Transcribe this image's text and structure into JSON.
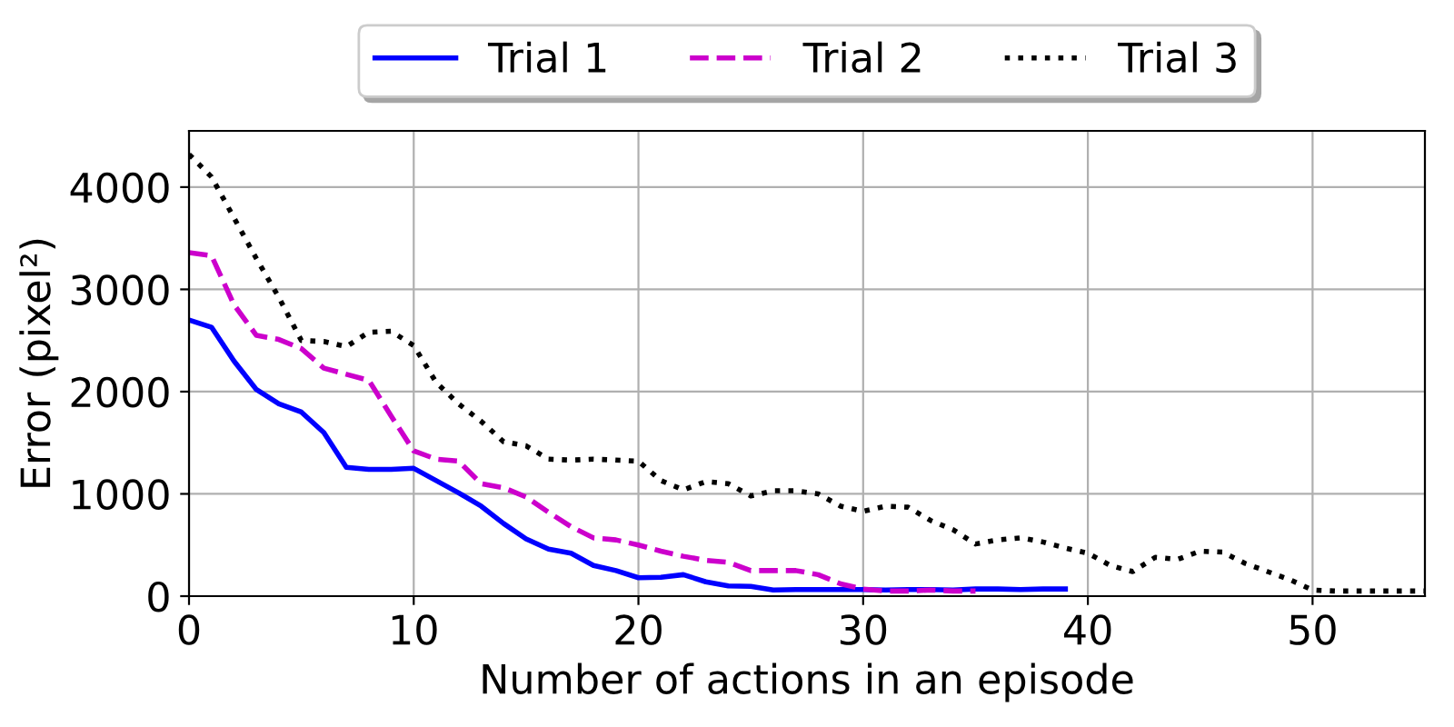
{
  "chart_data": {
    "type": "line",
    "xlabel": "Number of actions in an episode",
    "ylabel": "Error (pixel²)",
    "xlim": [
      0,
      55
    ],
    "ylim": [
      0,
      4550
    ],
    "xticks": [
      0,
      10,
      20,
      30,
      40,
      50
    ],
    "yticks": [
      0,
      1000,
      2000,
      3000,
      4000
    ],
    "grid": true,
    "legend": "top",
    "marker": "none",
    "series": [
      {
        "name": "Trial 1",
        "color": "#0000ff",
        "line_style": "solid",
        "x": [
          0,
          1,
          2,
          3,
          4,
          5,
          6,
          7,
          8,
          9,
          10,
          11,
          12,
          13,
          14,
          15,
          16,
          17,
          18,
          19,
          20,
          21,
          22,
          23,
          24,
          25,
          26,
          27,
          28,
          29,
          30,
          31,
          32,
          33,
          34,
          35,
          36,
          37,
          38,
          39
        ],
        "values": [
          2700,
          2630,
          2300,
          2020,
          1880,
          1800,
          1600,
          1260,
          1240,
          1240,
          1250,
          1130,
          1010,
          880,
          710,
          560,
          460,
          420,
          300,
          250,
          180,
          185,
          210,
          140,
          100,
          95,
          60,
          65,
          65,
          65,
          65,
          60,
          65,
          65,
          60,
          70,
          70,
          65,
          70,
          70
        ]
      },
      {
        "name": "Trial 2",
        "color": "#cc00cc",
        "line_style": "dashed",
        "x": [
          0,
          1,
          2,
          3,
          4,
          5,
          6,
          7,
          8,
          9,
          10,
          11,
          12,
          13,
          14,
          15,
          16,
          17,
          18,
          19,
          20,
          21,
          22,
          23,
          24,
          25,
          26,
          27,
          28,
          29,
          30,
          31,
          32,
          33,
          34,
          35
        ],
        "values": [
          3360,
          3330,
          2850,
          2550,
          2510,
          2420,
          2230,
          2170,
          2110,
          1760,
          1420,
          1340,
          1320,
          1100,
          1060,
          970,
          820,
          680,
          570,
          550,
          500,
          440,
          390,
          350,
          330,
          250,
          250,
          250,
          210,
          120,
          70,
          50,
          50,
          60,
          50,
          50
        ]
      },
      {
        "name": "Trial 3",
        "color": "#000000",
        "line_style": "dotted",
        "x": [
          0,
          1,
          2,
          3,
          4,
          5,
          6,
          7,
          8,
          9,
          10,
          11,
          12,
          13,
          14,
          15,
          16,
          17,
          18,
          19,
          20,
          21,
          22,
          23,
          24,
          25,
          26,
          27,
          28,
          29,
          30,
          31,
          32,
          33,
          34,
          35,
          36,
          37,
          38,
          39,
          40,
          41,
          42,
          43,
          44,
          45,
          46,
          47,
          48,
          49,
          50,
          51,
          52,
          53,
          54,
          55
        ],
        "values": [
          4320,
          4100,
          3700,
          3300,
          2920,
          2500,
          2490,
          2440,
          2580,
          2590,
          2450,
          2090,
          1880,
          1710,
          1510,
          1470,
          1340,
          1330,
          1340,
          1330,
          1320,
          1130,
          1040,
          1120,
          1100,
          980,
          1030,
          1030,
          1000,
          880,
          830,
          880,
          870,
          740,
          650,
          510,
          550,
          570,
          530,
          470,
          420,
          300,
          240,
          380,
          360,
          440,
          430,
          320,
          240,
          160,
          60,
          50,
          50,
          50,
          50,
          50
        ]
      }
    ]
  }
}
